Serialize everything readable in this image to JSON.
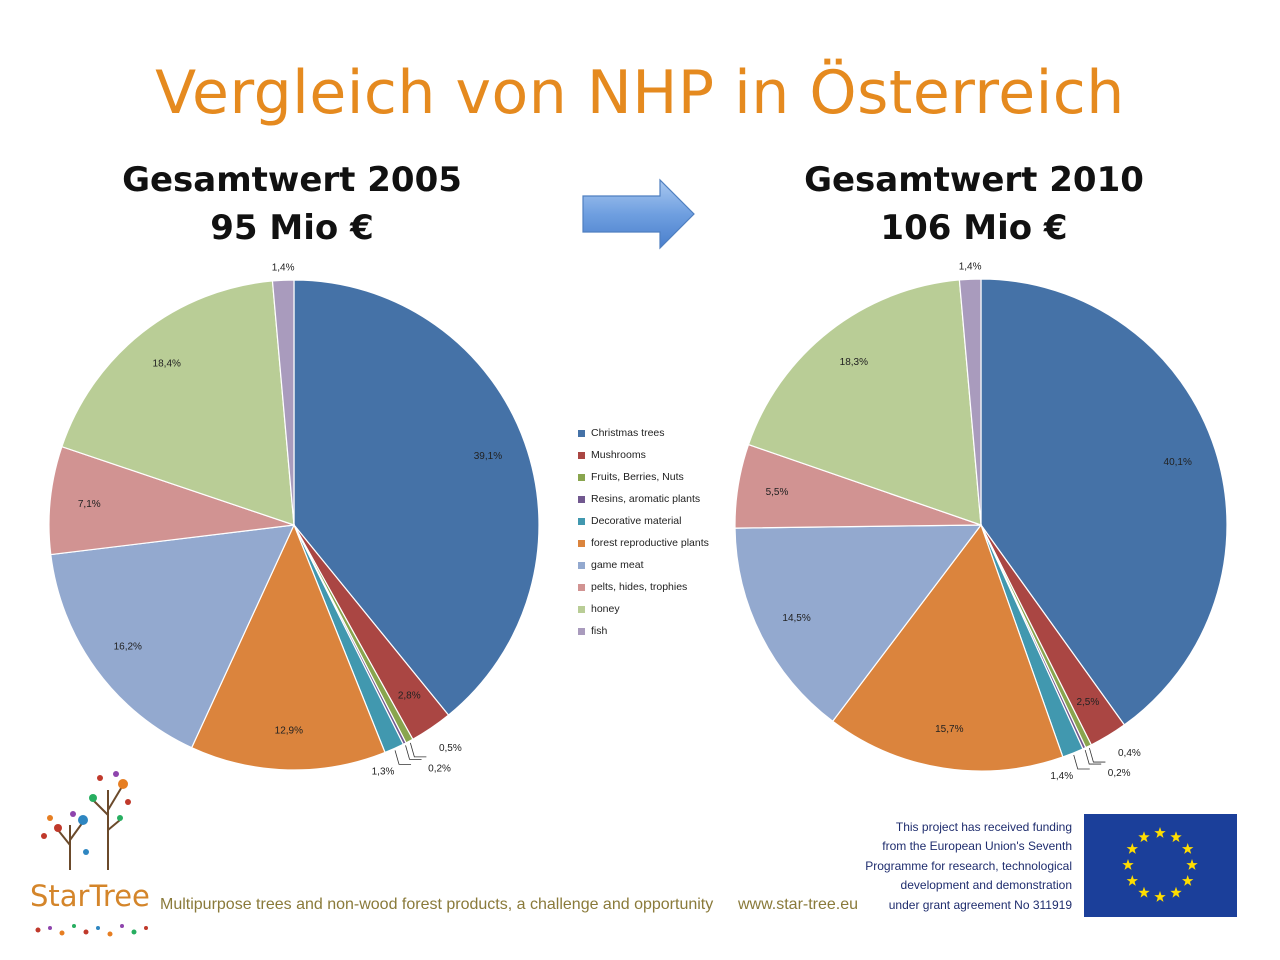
{
  "title": "Vergleich von NHP in Österreich",
  "chart_data": [
    {
      "type": "pie",
      "title": "Gesamtwert 2005",
      "subtitle": "95 Mio €",
      "categories": [
        "Christmas trees",
        "Mushrooms",
        "Fruits, Berries, Nuts",
        "Resins, aromatic plants",
        "Decorative material",
        "forest reproductive plants",
        "game meat",
        "pelts, hides, trophies",
        "honey",
        "fish"
      ],
      "values": [
        39.1,
        2.8,
        0.5,
        0.2,
        1.3,
        12.9,
        16.2,
        7.1,
        18.4,
        1.4
      ],
      "labels": [
        "39,1%",
        "2,8%",
        "0,5%",
        "0,2%",
        "1,3%",
        "12,9%",
        "16,2%",
        "7,1%",
        "18,4%",
        "1,4%"
      ]
    },
    {
      "type": "pie",
      "title": "Gesamtwert 2010",
      "subtitle": "106 Mio €",
      "categories": [
        "Christmas trees",
        "Mushrooms",
        "Fruits, Berries, Nuts",
        "Resins, aromatic plants",
        "Decorative material",
        "forest reproductive plants",
        "game meat",
        "pelts, hides, trophies",
        "honey",
        "fish"
      ],
      "values": [
        40.1,
        2.5,
        0.4,
        0.2,
        1.4,
        15.7,
        14.5,
        5.5,
        18.3,
        1.4
      ],
      "labels": [
        "40,1%",
        "2,5%",
        "0,4%",
        "0,2%",
        "1,4%",
        "15,7%",
        "14,5%",
        "5,5%",
        "18,3%",
        "1,4%"
      ]
    }
  ],
  "legend": {
    "placement": "center",
    "items": [
      "Christmas trees",
      "Mushrooms",
      "Fruits, Berries, Nuts",
      "Resins, aromatic plants",
      "Decorative material",
      "forest reproductive plants",
      "game meat",
      "pelts, hides, trophies",
      "honey",
      "fish"
    ],
    "colors": [
      "#4572A7",
      "#AA4643",
      "#89A54E",
      "#71588F",
      "#4198AF",
      "#DB843D",
      "#93A9CF",
      "#D19392",
      "#B9CD96",
      "#A99BBD"
    ]
  },
  "footer": {
    "logo_text": "StarTree",
    "tagline": "Multipurpose trees and non-wood forest products, a challenge and opportunity",
    "website": "www.star-tree.eu",
    "funding_lines": [
      "This project has received funding",
      "from the European Union's Seventh",
      "Programme for research, technological",
      "development and demonstration",
      "under grant agreement No 311919"
    ]
  }
}
